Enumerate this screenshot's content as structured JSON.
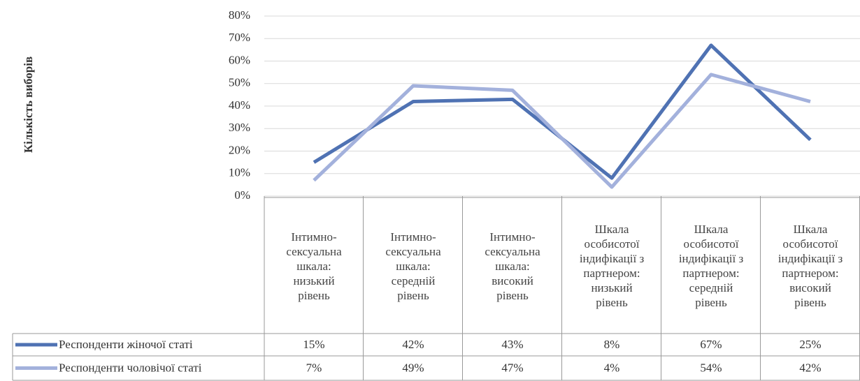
{
  "chart_data": {
    "type": "line",
    "y_label": "Кількість виборів",
    "categories": [
      "Інтимно-сексуальна шкала: низький рівень",
      "Інтимно-сексуальна шкала: середній рівень",
      "Інтимно-сексуальна шкала: високий рівень",
      "Шкала особисотої індифікації з партнером: низький рівень",
      "Шкала особисотої індифікації з партнером: середній рівень",
      "Шкала особисотої індифікації з партнером: високий рівень"
    ],
    "series": [
      {
        "name": "Респонденти жіночої статі",
        "color": "#4f72b3",
        "values": [
          15,
          42,
          43,
          8,
          67,
          25
        ],
        "value_labels": [
          "15%",
          "42%",
          "43%",
          "8%",
          "67%",
          "25%"
        ]
      },
      {
        "name": "Респонденти чоловічої статі",
        "color": "#a3b1dc",
        "values": [
          7,
          49,
          47,
          4,
          54,
          42
        ],
        "value_labels": [
          "7%",
          "49%",
          "47%",
          "4%",
          "54%",
          "42%"
        ]
      }
    ],
    "ylim": [
      0,
      80
    ],
    "yticks": [
      {
        "value": 0,
        "label": "0%"
      },
      {
        "value": 10,
        "label": "10%"
      },
      {
        "value": 20,
        "label": "20%"
      },
      {
        "value": 30,
        "label": "30%"
      },
      {
        "value": 40,
        "label": "40%"
      },
      {
        "value": 50,
        "label": "50%"
      },
      {
        "value": 60,
        "label": "60%"
      },
      {
        "value": 70,
        "label": "70%"
      },
      {
        "value": 80,
        "label": "80%"
      }
    ],
    "grid": true
  }
}
